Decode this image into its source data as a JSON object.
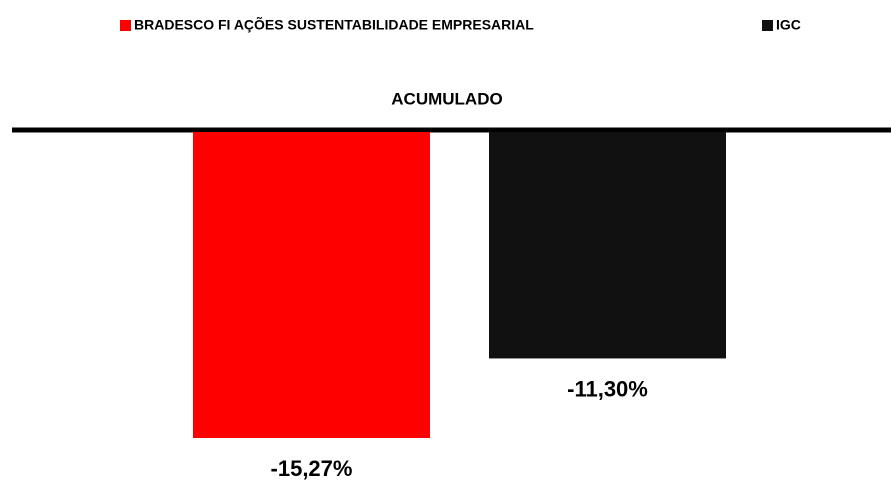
{
  "chart_data": {
    "type": "bar",
    "title": "ACUMULADO",
    "legend": "top",
    "series": [
      {
        "name": "BRADESCO FI AÇÕES SUSTENTABILIDADE EMPRESARIAL",
        "color": "#ff0000",
        "values": [
          -15.27
        ],
        "value_labels": [
          "-15,27%"
        ]
      },
      {
        "name": "IGC",
        "color": "#111111",
        "values": [
          -11.3
        ],
        "value_labels": [
          "-11,30%"
        ]
      }
    ]
  }
}
